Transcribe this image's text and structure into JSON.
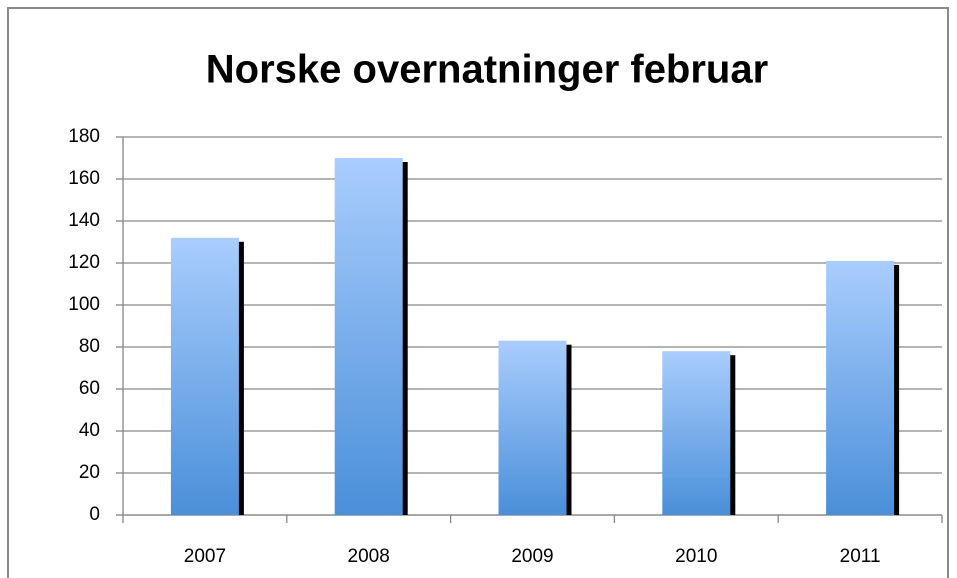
{
  "chart_data": {
    "type": "bar",
    "title": "Norske overnatninger februar",
    "categories": [
      "2007",
      "2008",
      "2009",
      "2010",
      "2011"
    ],
    "values": [
      132,
      170,
      83,
      78,
      121
    ],
    "color": "#4a8fd9",
    "ylim": [
      0,
      180
    ],
    "yticks": [
      0,
      20,
      40,
      60,
      80,
      100,
      120,
      140,
      160,
      180
    ],
    "grid": true
  }
}
